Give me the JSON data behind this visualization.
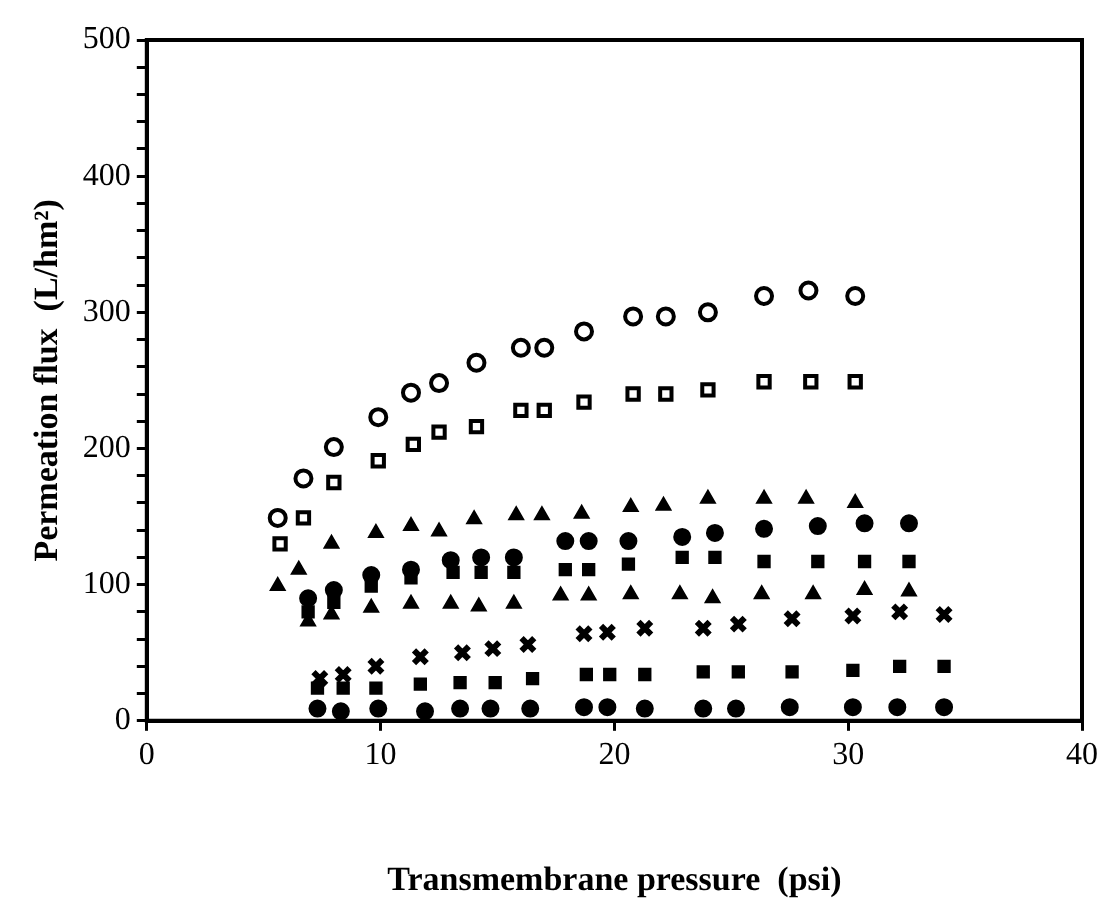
{
  "chart_data": {
    "type": "scatter",
    "xlabel": "Transmembrane pressure  (psi)",
    "ylabel": "Permeation flux  (L/hm²)",
    "xlim": [
      0,
      40
    ],
    "xticks": [
      0,
      10,
      20,
      30,
      40
    ],
    "ylim": [
      0,
      500
    ],
    "yticks": [
      0,
      {
        "value": 20,
        "label": null
      },
      {
        "value": 40,
        "label": null
      },
      {
        "value": 60,
        "label": null
      },
      {
        "value": 80,
        "label": null
      },
      100,
      {
        "value": 120,
        "label": null
      },
      {
        "value": 140,
        "label": null
      },
      {
        "value": 160,
        "label": null
      },
      {
        "value": 180,
        "label": null
      },
      200,
      {
        "value": 220,
        "label": null
      },
      {
        "value": 240,
        "label": null
      },
      {
        "value": 260,
        "label": null
      },
      {
        "value": 280,
        "label": null
      },
      300,
      {
        "value": 320,
        "label": null
      },
      {
        "value": 340,
        "label": null
      },
      {
        "value": 360,
        "label": null
      },
      {
        "value": 380,
        "label": null
      },
      400,
      {
        "value": 420,
        "label": null
      },
      {
        "value": 440,
        "label": null
      },
      {
        "value": 460,
        "label": null
      },
      {
        "value": 480,
        "label": null
      },
      500
    ],
    "grid": false,
    "legend": false,
    "series": [
      {
        "color": "#000000",
        "marker": "circle-open",
        "x": [
          5.6,
          6.7,
          8.0,
          9.9,
          11.3,
          12.5,
          14.1,
          16.0,
          17.0,
          18.7,
          20.8,
          22.2,
          24.0,
          26.4,
          28.3,
          30.3
        ],
        "values": [
          149,
          178,
          201,
          223,
          241,
          248,
          263,
          274,
          274,
          286,
          297,
          297,
          300,
          312,
          316,
          312
        ]
      },
      {
        "color": "#000000",
        "marker": "square-open",
        "x": [
          5.7,
          6.7,
          8.0,
          9.9,
          11.4,
          12.5,
          14.1,
          16.0,
          17.0,
          18.7,
          20.8,
          22.2,
          24.0,
          26.4,
          28.4,
          30.3
        ],
        "values": [
          130,
          149,
          175,
          191,
          203,
          212,
          216,
          228,
          228,
          234,
          240,
          240,
          243,
          249,
          249,
          249
        ]
      },
      {
        "color": "#000000",
        "marker": "triangle",
        "x": [
          5.6,
          6.5,
          7.9,
          9.8,
          11.3,
          12.5,
          14.0,
          15.8,
          16.9,
          18.6,
          20.7,
          22.1,
          24.0,
          26.4,
          28.2,
          30.3
        ],
        "values": [
          99,
          111,
          130,
          138,
          143,
          139,
          148,
          151,
          151,
          152,
          157,
          158,
          163,
          163,
          163,
          160
        ]
      },
      {
        "color": "#000000",
        "marker": "circle",
        "x": [
          6.9,
          8.0,
          9.6,
          11.3,
          13.0,
          14.3,
          15.7,
          17.9,
          18.9,
          20.6,
          22.9,
          24.3,
          26.4,
          28.7,
          30.7,
          32.6
        ],
        "values": [
          90,
          96,
          107,
          111,
          118,
          120,
          120,
          132,
          132,
          132,
          135,
          138,
          141,
          143,
          145,
          145
        ]
      },
      {
        "color": "#000000",
        "marker": "square",
        "x": [
          6.9,
          8.0,
          9.6,
          11.3,
          13.1,
          14.3,
          15.7,
          17.9,
          18.9,
          20.6,
          22.9,
          24.3,
          26.4,
          28.7,
          30.7,
          32.6
        ],
        "values": [
          80,
          87,
          99,
          105,
          109,
          109,
          109,
          111,
          111,
          115,
          120,
          120,
          117,
          117,
          117,
          117
        ]
      },
      {
        "color": "#000000",
        "marker": "triangle",
        "x": [
          6.9,
          7.9,
          9.6,
          11.3,
          13.0,
          14.2,
          15.7,
          17.7,
          18.9,
          20.7,
          22.8,
          24.2,
          26.3,
          28.5,
          30.7,
          32.6
        ],
        "values": [
          73,
          78,
          83,
          86,
          86,
          84,
          86,
          92,
          92,
          93,
          93,
          90,
          93,
          93,
          96,
          95
        ]
      },
      {
        "color": "#000000",
        "marker": "cross",
        "x": [
          7.4,
          8.4,
          9.8,
          11.7,
          13.5,
          14.8,
          16.3,
          18.7,
          19.7,
          21.3,
          23.8,
          25.3,
          27.6,
          30.2,
          32.2,
          34.1
        ],
        "values": [
          31,
          34,
          40,
          47,
          50,
          53,
          56,
          64,
          65,
          68,
          68,
          71,
          75,
          77,
          80,
          78
        ]
      },
      {
        "color": "#000000",
        "marker": "square",
        "x": [
          7.3,
          8.4,
          9.8,
          11.7,
          13.4,
          14.9,
          16.5,
          18.8,
          19.8,
          21.3,
          23.8,
          25.3,
          27.6,
          30.2,
          32.2,
          34.1
        ],
        "values": [
          24,
          24,
          24,
          27,
          28,
          28,
          31,
          34,
          34,
          34,
          36,
          36,
          36,
          37,
          40,
          40
        ]
      },
      {
        "color": "#000000",
        "marker": "circle",
        "x": [
          7.3,
          8.3,
          9.9,
          11.9,
          13.4,
          14.7,
          16.4,
          18.7,
          19.7,
          21.3,
          23.8,
          25.2,
          27.5,
          30.2,
          32.1,
          34.1
        ],
        "values": [
          9,
          7,
          9,
          7,
          9,
          9,
          9,
          10,
          10,
          9,
          9,
          9,
          10,
          10,
          10,
          10
        ]
      }
    ]
  }
}
